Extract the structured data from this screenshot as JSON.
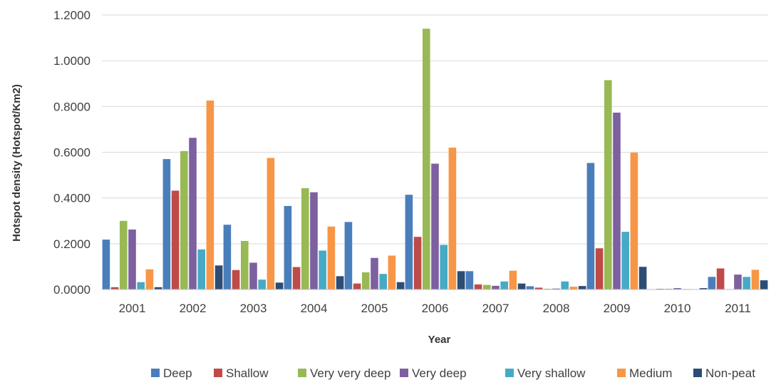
{
  "chart_data": {
    "type": "bar",
    "title": "",
    "xlabel": "Year",
    "ylabel": "Hotspot density (Hotspot/Km2)",
    "ylim": [
      0,
      1.2
    ],
    "yticks": [
      "0.0000",
      "0.2000",
      "0.4000",
      "0.6000",
      "0.8000",
      "1.0000",
      "1.2000"
    ],
    "ytick_values": [
      0,
      0.2,
      0.4,
      0.6,
      0.8,
      1.0,
      1.2
    ],
    "grid": true,
    "legend_position": "bottom",
    "categories": [
      "2001",
      "2002",
      "2003",
      "2004",
      "2005",
      "2006",
      "2007",
      "2008",
      "2009",
      "2010",
      "2011"
    ],
    "series": [
      {
        "name": "Deep",
        "color": "#4a7ebb",
        "values": [
          0.218,
          0.57,
          0.283,
          0.365,
          0.295,
          0.414,
          0.08,
          0.014,
          0.553,
          0.0,
          0.055
        ]
      },
      {
        "name": "Shallow",
        "color": "#be4b48",
        "values": [
          0.01,
          0.432,
          0.085,
          0.098,
          0.026,
          0.23,
          0.022,
          0.008,
          0.18,
          0.003,
          0.092
        ]
      },
      {
        "name": "Very very deep",
        "color": "#98b954",
        "values": [
          0.3,
          0.605,
          0.212,
          0.443,
          0.075,
          1.14,
          0.02,
          0.003,
          0.915,
          0.003,
          0.0
        ]
      },
      {
        "name": "Very deep",
        "color": "#7d60a0",
        "values": [
          0.262,
          0.663,
          0.117,
          0.425,
          0.138,
          0.55,
          0.016,
          0.004,
          0.773,
          0.006,
          0.065
        ]
      },
      {
        "name": "Very shallow",
        "color": "#46aac5",
        "values": [
          0.032,
          0.175,
          0.043,
          0.17,
          0.068,
          0.195,
          0.035,
          0.035,
          0.252,
          0.002,
          0.055
        ]
      },
      {
        "name": "Medium",
        "color": "#f79646",
        "values": [
          0.088,
          0.826,
          0.575,
          0.275,
          0.148,
          0.62,
          0.082,
          0.012,
          0.598,
          0.0,
          0.086
        ]
      },
      {
        "name": "Non-peat",
        "color": "#2c4d75",
        "values": [
          0.01,
          0.105,
          0.03,
          0.058,
          0.032,
          0.08,
          0.026,
          0.015,
          0.099,
          0.006,
          0.04
        ]
      }
    ]
  }
}
